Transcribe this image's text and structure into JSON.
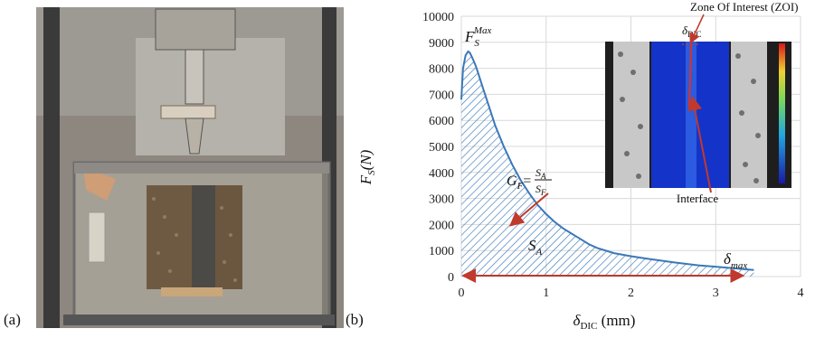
{
  "panel_a": {
    "label": "(a)",
    "photo": "test rig photo: loading frame above a glass tank holding a specimen with a central interface"
  },
  "panel_b": {
    "label": "(b)",
    "inset": {
      "zoi_label": "Zone Of Interest (ZOI)",
      "delta_dic_label": "δ",
      "delta_dic_sub": "DIC",
      "interface_label": "Interface",
      "arrow_color": "#c0392b"
    },
    "annotations": {
      "fmax_main": "F",
      "fmax_sub": "S",
      "fmax_sup": "Max",
      "gf_main": "G",
      "gf_sub": "F",
      "gf_eq": "=",
      "gf_num": "S",
      "gf_num_sub": "A",
      "gf_den": "S",
      "gf_den_sub": "F",
      "sa_main": "S",
      "sa_sub": "A",
      "dmax_main": "δ",
      "dmax_sub": "max"
    }
  },
  "chart_data": {
    "type": "area",
    "title": "",
    "xlabel_main": "δ",
    "xlabel_sub": "DIC",
    "xlabel_unit": " (mm)",
    "ylabel_main": "F",
    "ylabel_sub": "S",
    "ylabel_unit": "(N)",
    "xlim": [
      0,
      4
    ],
    "ylim": [
      0,
      10000
    ],
    "xticks": [
      "0",
      "1",
      "2",
      "3",
      "4"
    ],
    "yticks": [
      "0",
      "1000",
      "2000",
      "3000",
      "4000",
      "5000",
      "6000",
      "7000",
      "8000",
      "9000",
      "10000"
    ],
    "grid": true,
    "series": [
      {
        "color": "#3b78b8",
        "hatch": true,
        "x": [
          0.0,
          0.02,
          0.05,
          0.08,
          0.1,
          0.13,
          0.17,
          0.2,
          0.25,
          0.3,
          0.35,
          0.4,
          0.45,
          0.5,
          0.6,
          0.7,
          0.8,
          0.9,
          1.0,
          1.1,
          1.2,
          1.3,
          1.4,
          1.5,
          1.6,
          1.8,
          2.0,
          2.2,
          2.5,
          2.8,
          3.0,
          3.2,
          3.45
        ],
        "y": [
          6800,
          8000,
          8500,
          8650,
          8600,
          8400,
          8100,
          7800,
          7300,
          6800,
          6300,
          5800,
          5400,
          5000,
          4300,
          3700,
          3200,
          2750,
          2400,
          2100,
          1850,
          1650,
          1450,
          1250,
          1100,
          900,
          780,
          680,
          550,
          430,
          380,
          320,
          250
        ]
      }
    ],
    "arrow_range": [
      0.0,
      3.3
    ],
    "arrow_color": "#c0392b"
  }
}
